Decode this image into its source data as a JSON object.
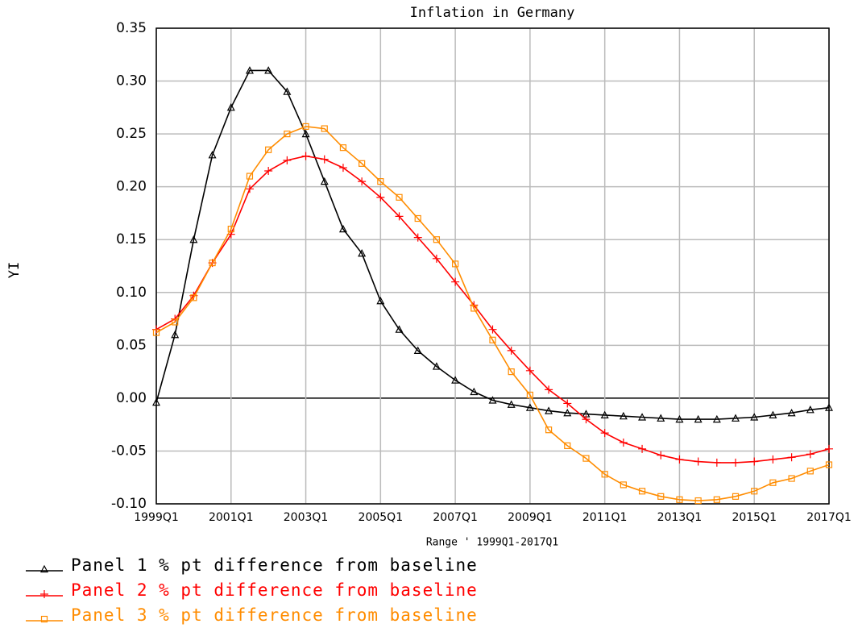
{
  "chart_data": {
    "type": "line",
    "title": "Inflation in Germany",
    "ylabel": "YI",
    "xlabel": "Range ' 1999Q1-2017Q1",
    "x": [
      "1999Q1",
      "1999Q3",
      "2000Q1",
      "2000Q3",
      "2001Q1",
      "2001Q3",
      "2002Q1",
      "2002Q3",
      "2003Q1",
      "2003Q3",
      "2004Q1",
      "2004Q3",
      "2005Q1",
      "2005Q3",
      "2006Q1",
      "2006Q3",
      "2007Q1",
      "2007Q3",
      "2008Q1",
      "2008Q3",
      "2009Q1",
      "2009Q3",
      "2010Q1",
      "2010Q3",
      "2011Q1",
      "2011Q3",
      "2012Q1",
      "2012Q3",
      "2013Q1",
      "2013Q3",
      "2014Q1",
      "2014Q3",
      "2015Q1",
      "2015Q3",
      "2016Q1",
      "2016Q3",
      "2017Q1"
    ],
    "xlim": [
      "1999Q1",
      "2017Q1"
    ],
    "xticks": [
      "1999Q1",
      "2001Q1",
      "2003Q1",
      "2005Q1",
      "2007Q1",
      "2009Q1",
      "2011Q1",
      "2013Q1",
      "2015Q1",
      "2017Q1"
    ],
    "ylim": [
      -0.1,
      0.35
    ],
    "yticks": [
      {
        "value": -0.1,
        "label": "-0.10"
      },
      {
        "value": -0.05,
        "label": "-0.05"
      },
      {
        "value": 0,
        "label": "0.00"
      },
      {
        "value": 0.05,
        "label": "0.05"
      },
      {
        "value": 0.1,
        "label": "0.10"
      },
      {
        "value": 0.15,
        "label": "0.15"
      },
      {
        "value": 0.2,
        "label": "0.20"
      },
      {
        "value": 0.25,
        "label": "0.25"
      },
      {
        "value": 0.3,
        "label": "0.30"
      },
      {
        "value": 0.35,
        "label": "0.35"
      }
    ],
    "grid": true,
    "series": [
      {
        "name": "Panel 1 % pt difference from baseline",
        "color": "#000000",
        "marker": "triangle",
        "values": [
          -0.004,
          0.06,
          0.15,
          0.23,
          0.275,
          0.31,
          0.31,
          0.29,
          0.25,
          0.205,
          0.16,
          0.137,
          0.092,
          0.065,
          0.045,
          0.03,
          0.017,
          0.006,
          -0.002,
          -0.006,
          -0.009,
          -0.012,
          -0.014,
          -0.015,
          -0.016,
          -0.017,
          -0.018,
          -0.019,
          -0.02,
          -0.02,
          -0.02,
          -0.019,
          -0.018,
          -0.016,
          -0.014,
          -0.011,
          -0.009
        ]
      },
      {
        "name": "Panel 2 % pt difference from baseline",
        "color": "#ff0000",
        "marker": "plus",
        "values": [
          0.065,
          0.075,
          0.097,
          0.128,
          0.155,
          0.198,
          0.215,
          0.225,
          0.229,
          0.226,
          0.218,
          0.205,
          0.19,
          0.172,
          0.152,
          0.132,
          0.11,
          0.088,
          0.065,
          0.045,
          0.026,
          0.008,
          -0.005,
          -0.02,
          -0.033,
          -0.042,
          -0.048,
          -0.054,
          -0.058,
          -0.06,
          -0.061,
          -0.061,
          -0.06,
          -0.058,
          -0.056,
          -0.053,
          -0.048
        ]
      },
      {
        "name": "Panel 3 % pt difference from baseline",
        "color": "#ff8c00",
        "marker": "square",
        "values": [
          0.062,
          0.072,
          0.095,
          0.128,
          0.16,
          0.21,
          0.235,
          0.25,
          0.257,
          0.255,
          0.237,
          0.222,
          0.205,
          0.19,
          0.17,
          0.15,
          0.127,
          0.085,
          0.055,
          0.025,
          0.003,
          -0.03,
          -0.045,
          -0.057,
          -0.072,
          -0.082,
          -0.088,
          -0.093,
          -0.096,
          -0.097,
          -0.096,
          -0.093,
          -0.088,
          -0.08,
          -0.076,
          -0.069,
          -0.063
        ]
      }
    ]
  }
}
